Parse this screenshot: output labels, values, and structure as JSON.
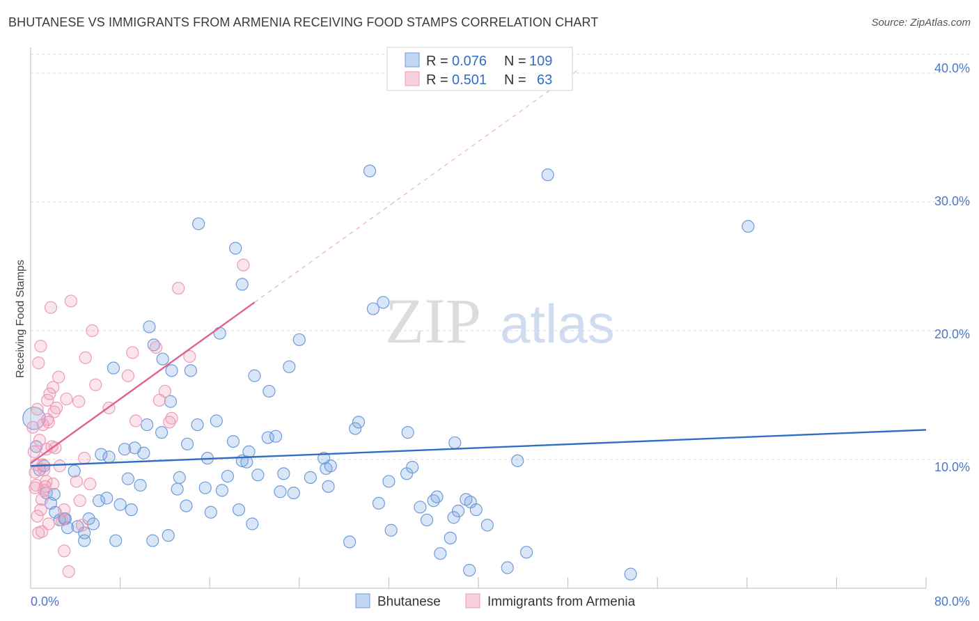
{
  "title": "BHUTANESE VS IMMIGRANTS FROM ARMENIA RECEIVING FOOD STAMPS CORRELATION CHART",
  "source": "Source: ZipAtlas.com",
  "watermark": {
    "zip": "ZIP",
    "atlas": "atlas"
  },
  "colors": {
    "blue_fill": "rgba(120,165,225,0.28)",
    "blue_stroke": "#6f9bd8",
    "blue_line": "#2f6ec5",
    "pink_fill": "rgba(240,150,180,0.25)",
    "pink_stroke": "#ee9ab6",
    "pink_line": "#e0608e",
    "grid": "#d9d9d9",
    "tick_label": "#4a78c8"
  },
  "legend": {
    "rows": [
      {
        "r_label": "R =",
        "r_value": "0.076",
        "n_label": "N =",
        "n_value": "109"
      },
      {
        "r_label": "R =",
        "r_value": "0.501",
        "n_label": "N =",
        "n_value": "63"
      }
    ]
  },
  "chart_data": {
    "type": "scatter",
    "title": "BHUTANESE VS IMMIGRANTS FROM ARMENIA RECEIVING FOOD STAMPS CORRELATION CHART",
    "xlabel": "",
    "ylabel": "Receiving Food Stamps",
    "xlim": [
      0,
      80
    ],
    "ylim": [
      0,
      42
    ],
    "x_tick_labels": [
      "0.0%",
      "80.0%"
    ],
    "y_ticks": [
      10,
      20,
      30,
      40
    ],
    "y_tick_labels": [
      "10.0%",
      "20.0%",
      "30.0%",
      "40.0%"
    ],
    "grid": true,
    "legend_position": "top-center",
    "series": [
      {
        "name": "Bhutanese",
        "R": 0.076,
        "N": 109,
        "trend": {
          "x0": 0,
          "y0": 9.5,
          "x1": 80,
          "y1": 12.3
        },
        "points": [
          [
            0.3,
            13.2
          ],
          [
            0.5,
            11.0
          ],
          [
            0.8,
            9.2
          ],
          [
            1.2,
            9.5
          ],
          [
            1.4,
            7.4
          ],
          [
            1.8,
            6.6
          ],
          [
            2.2,
            5.9
          ],
          [
            2.6,
            5.3
          ],
          [
            3.0,
            5.4
          ],
          [
            3.3,
            4.7
          ],
          [
            3.9,
            9.1
          ],
          [
            4.2,
            4.8
          ],
          [
            4.8,
            4.3
          ],
          [
            4.8,
            3.7
          ],
          [
            5.2,
            5.4
          ],
          [
            5.6,
            5.0
          ],
          [
            6.1,
            6.8
          ],
          [
            6.8,
            7.0
          ],
          [
            6.3,
            10.4
          ],
          [
            7.0,
            10.2
          ],
          [
            7.4,
            17.1
          ],
          [
            7.6,
            3.7
          ],
          [
            8.0,
            6.5
          ],
          [
            8.4,
            10.8
          ],
          [
            8.7,
            8.5
          ],
          [
            9.0,
            6.1
          ],
          [
            9.3,
            10.9
          ],
          [
            9.8,
            8.0
          ],
          [
            10.1,
            10.5
          ],
          [
            10.4,
            12.7
          ],
          [
            10.6,
            20.3
          ],
          [
            10.9,
            3.7
          ],
          [
            11.0,
            18.9
          ],
          [
            11.7,
            12.1
          ],
          [
            11.8,
            17.8
          ],
          [
            12.3,
            4.1
          ],
          [
            12.5,
            14.5
          ],
          [
            12.6,
            16.9
          ],
          [
            13.1,
            7.7
          ],
          [
            13.3,
            8.6
          ],
          [
            13.9,
            6.4
          ],
          [
            14.0,
            11.2
          ],
          [
            14.3,
            16.9
          ],
          [
            14.9,
            12.7
          ],
          [
            15.0,
            28.3
          ],
          [
            15.6,
            7.8
          ],
          [
            15.8,
            10.1
          ],
          [
            16.1,
            5.9
          ],
          [
            16.6,
            13.0
          ],
          [
            17.1,
            7.6
          ],
          [
            16.9,
            19.8
          ],
          [
            17.6,
            8.7
          ],
          [
            18.1,
            11.4
          ],
          [
            18.3,
            26.4
          ],
          [
            18.6,
            6.1
          ],
          [
            18.9,
            23.6
          ],
          [
            18.9,
            9.9
          ],
          [
            19.3,
            9.8
          ],
          [
            19.5,
            10.6
          ],
          [
            19.8,
            5.0
          ],
          [
            20.0,
            16.5
          ],
          [
            20.3,
            8.8
          ],
          [
            21.3,
            15.3
          ],
          [
            21.2,
            11.7
          ],
          [
            21.9,
            11.8
          ],
          [
            22.3,
            7.5
          ],
          [
            22.6,
            8.9
          ],
          [
            23.1,
            17.2
          ],
          [
            23.5,
            7.4
          ],
          [
            24.0,
            19.3
          ],
          [
            25.0,
            8.6
          ],
          [
            26.2,
            10.1
          ],
          [
            26.4,
            9.3
          ],
          [
            26.8,
            9.5
          ],
          [
            26.6,
            7.9
          ],
          [
            28.5,
            3.6
          ],
          [
            29.0,
            12.4
          ],
          [
            29.3,
            12.9
          ],
          [
            30.3,
            32.4
          ],
          [
            30.6,
            21.7
          ],
          [
            31.1,
            6.6
          ],
          [
            31.5,
            22.2
          ],
          [
            32.0,
            8.3
          ],
          [
            32.2,
            4.5
          ],
          [
            33.6,
            8.9
          ],
          [
            33.7,
            12.1
          ],
          [
            34.1,
            9.4
          ],
          [
            34.8,
            6.3
          ],
          [
            35.4,
            5.3
          ],
          [
            36.0,
            6.8
          ],
          [
            36.3,
            7.1
          ],
          [
            36.6,
            2.7
          ],
          [
            37.5,
            3.9
          ],
          [
            37.8,
            5.5
          ],
          [
            37.9,
            11.3
          ],
          [
            38.2,
            6.0
          ],
          [
            38.9,
            6.9
          ],
          [
            39.2,
            1.4
          ],
          [
            39.3,
            6.7
          ],
          [
            39.8,
            6.1
          ],
          [
            40.8,
            4.9
          ],
          [
            42.6,
            1.6
          ],
          [
            43.5,
            9.9
          ],
          [
            44.3,
            2.8
          ],
          [
            46.2,
            32.1
          ],
          [
            53.6,
            1.1
          ],
          [
            64.1,
            28.1
          ],
          [
            2.1,
            7.3
          ],
          [
            3.1,
            5.4
          ]
        ]
      },
      {
        "name": "Immigrants from Armenia",
        "R": 0.501,
        "N": 63,
        "trend_solid": {
          "x0": 0,
          "y0": 9.7,
          "x1": 20,
          "y1": 22.2
        },
        "trend_dashed": {
          "x0": 20,
          "y0": 22.2,
          "x1": 49,
          "y1": 40.3
        },
        "points": [
          [
            0.2,
            12.5
          ],
          [
            0.3,
            10.6
          ],
          [
            0.4,
            7.8
          ],
          [
            0.5,
            9.6
          ],
          [
            0.6,
            5.6
          ],
          [
            0.7,
            17.5
          ],
          [
            0.8,
            11.5
          ],
          [
            0.9,
            18.8
          ],
          [
            1.0,
            6.9
          ],
          [
            1.0,
            4.4
          ],
          [
            1.1,
            12.7
          ],
          [
            1.2,
            9.2
          ],
          [
            1.3,
            7.9
          ],
          [
            1.4,
            8.3
          ],
          [
            1.5,
            13.1
          ],
          [
            1.5,
            14.6
          ],
          [
            1.6,
            5.0
          ],
          [
            1.7,
            15.1
          ],
          [
            1.8,
            21.8
          ],
          [
            1.9,
            11.0
          ],
          [
            2.0,
            15.6
          ],
          [
            2.1,
            13.7
          ],
          [
            2.2,
            10.9
          ],
          [
            2.3,
            14.0
          ],
          [
            2.5,
            16.4
          ],
          [
            2.6,
            9.5
          ],
          [
            2.8,
            5.3
          ],
          [
            3.0,
            2.9
          ],
          [
            3.2,
            14.7
          ],
          [
            3.4,
            1.3
          ],
          [
            3.6,
            22.3
          ],
          [
            4.1,
            8.3
          ],
          [
            4.3,
            14.5
          ],
          [
            4.4,
            6.8
          ],
          [
            4.6,
            4.9
          ],
          [
            4.8,
            10.1
          ],
          [
            4.9,
            17.9
          ],
          [
            5.3,
            8.1
          ],
          [
            5.5,
            20.0
          ],
          [
            5.8,
            15.8
          ],
          [
            7.0,
            14.0
          ],
          [
            8.7,
            16.5
          ],
          [
            9.1,
            18.3
          ],
          [
            9.4,
            13.0
          ],
          [
            11.2,
            18.7
          ],
          [
            11.5,
            14.6
          ],
          [
            12.0,
            15.3
          ],
          [
            12.4,
            12.9
          ],
          [
            12.6,
            13.2
          ],
          [
            13.2,
            23.3
          ],
          [
            14.2,
            18.0
          ],
          [
            19.0,
            25.1
          ],
          [
            0.4,
            9.0
          ],
          [
            0.5,
            8.0
          ],
          [
            0.6,
            13.9
          ],
          [
            1.2,
            7.6
          ],
          [
            1.4,
            10.8
          ],
          [
            1.6,
            12.9
          ],
          [
            0.9,
            6.1
          ],
          [
            2.0,
            8.1
          ],
          [
            3.0,
            6.1
          ],
          [
            1.1,
            9.6
          ],
          [
            0.7,
            4.3
          ]
        ]
      }
    ]
  },
  "bottom_legend": [
    "Bhutanese",
    "Immigrants from Armenia"
  ]
}
